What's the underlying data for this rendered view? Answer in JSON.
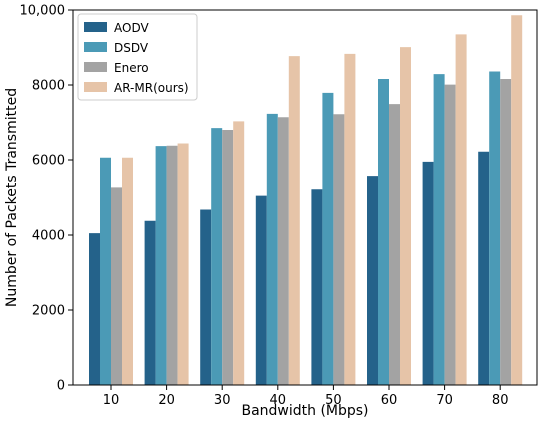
{
  "chart_data": {
    "type": "bar",
    "xlabel": "Bandwidth (Mbps)",
    "ylabel": "Number of Packets Transmitted",
    "categories": [
      "10",
      "20",
      "30",
      "40",
      "50",
      "60",
      "70",
      "80"
    ],
    "ylim": [
      0,
      10000
    ],
    "yticks": [
      0,
      2000,
      4000,
      6000,
      8000,
      10000
    ],
    "ytick_labels": [
      "0",
      "2000",
      "4000",
      "6000",
      "8000",
      "10,000"
    ],
    "grid": false,
    "legend_position": "top-left",
    "series": [
      {
        "name": "AODV",
        "color": "#24628a",
        "values": [
          4050,
          4380,
          4680,
          5050,
          5220,
          5570,
          5950,
          6220
        ]
      },
      {
        "name": "DSDV",
        "color": "#4b9ab6",
        "values": [
          6060,
          6370,
          6850,
          7230,
          7790,
          8160,
          8290,
          8360
        ]
      },
      {
        "name": "Enero",
        "color": "#a3a3a3",
        "values": [
          5270,
          6380,
          6800,
          7140,
          7220,
          7490,
          8010,
          8160
        ]
      },
      {
        "name": "AR-MR(ours)",
        "color": "#e6c4a8",
        "values": [
          6060,
          6440,
          7030,
          8770,
          8830,
          9010,
          9350,
          9860
        ]
      }
    ]
  }
}
